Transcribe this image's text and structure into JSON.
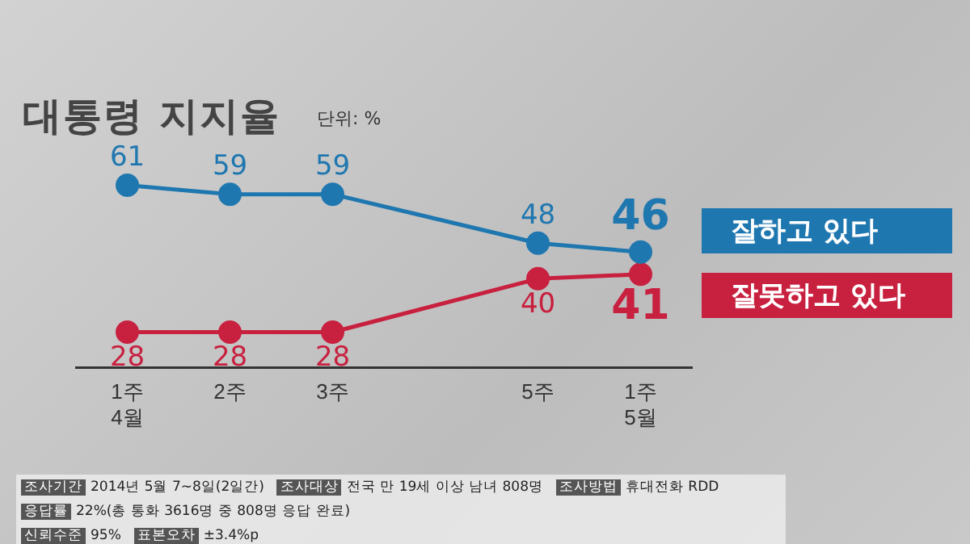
{
  "chart_data": {
    "type": "line",
    "title": "대통령 지지율",
    "categories": [
      "1주\n4월",
      "2주",
      "3주",
      null,
      "5주",
      "1주\n5월"
    ],
    "series": [
      {
        "name": "잘하고 있다",
        "color": "#1f77b0",
        "values": [
          61,
          59,
          59,
          null,
          48,
          46
        ]
      },
      {
        "name": "잘못하고 있다",
        "color": "#c8203f",
        "values": [
          28,
          28,
          28,
          null,
          40,
          41
        ]
      }
    ],
    "tick_labels": "x",
    "grid": false,
    "legend": "right",
    "marker": "circle",
    "data_labels": true,
    "annotations": [
      "단위: %",
      "조사기간 2014년 5월 7~8일(2일간)",
      "조사대상 전국 만 19세 이상 남녀 808명",
      "조사방법 휴대전화 RDD",
      "응답률 22%(총 통화 3616명 중 808명 응답 완료)",
      "신뢰수준 95%",
      "표본오차 ±3.4%p"
    ]
  }
}
